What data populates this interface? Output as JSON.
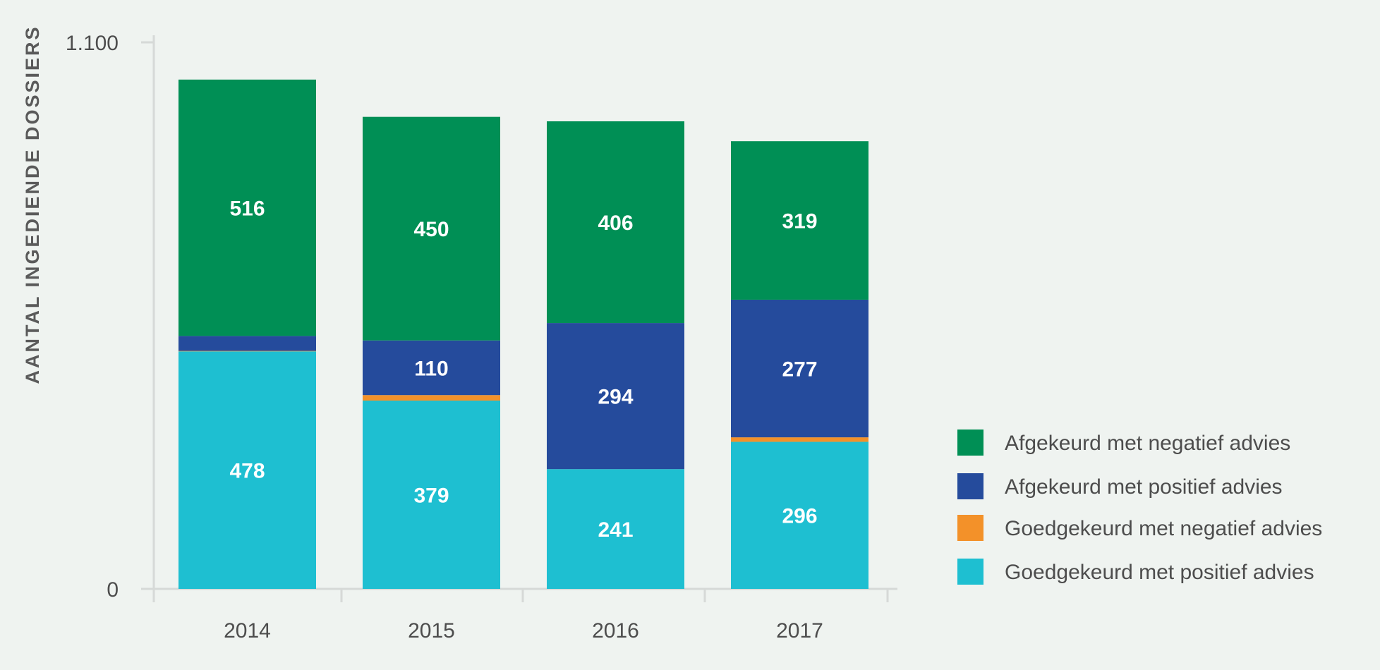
{
  "chart_data": {
    "type": "bar",
    "stacked": true,
    "title": "",
    "xlabel": "",
    "ylabel": "AANTAL INGEDIENDE DOSSIERS",
    "ylim": [
      0,
      1100
    ],
    "y_tick_labels": [
      "0",
      "1.100"
    ],
    "categories": [
      "2014",
      "2015",
      "2016",
      "2017"
    ],
    "grid": false,
    "legend_position": "right",
    "series": [
      {
        "name": "Goedgekeurd met positief advies",
        "color": "#1ebfd1",
        "values": [
          478,
          379,
          241,
          296
        ],
        "labels": [
          "478",
          "379",
          "241",
          "296"
        ]
      },
      {
        "name": "Goedgekeurd met negatief advies",
        "color": "#f39129",
        "values": [
          1,
          11,
          0,
          9
        ],
        "labels": [
          "",
          "",
          "",
          ""
        ]
      },
      {
        "name": "Afgekeurd met positief advies",
        "color": "#254b9c",
        "values": [
          30,
          110,
          294,
          277
        ],
        "labels": [
          "",
          "110",
          "294",
          "277"
        ]
      },
      {
        "name": "Afgekeurd met negatief advies",
        "color": "#008f55",
        "values": [
          516,
          450,
          406,
          319
        ],
        "labels": [
          "516",
          "450",
          "406",
          "319"
        ]
      }
    ],
    "legend_order": [
      3,
      2,
      1,
      0
    ]
  }
}
